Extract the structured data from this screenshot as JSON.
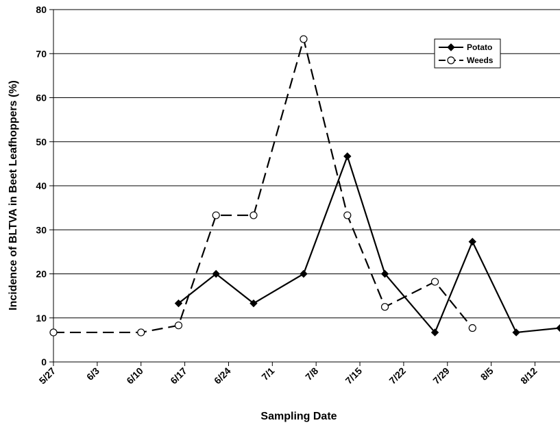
{
  "chart_data": {
    "type": "line",
    "title": "",
    "xlabel": "Sampling Date",
    "ylabel": "Incidence of BLTVA in Beet Leafhoppers (%)",
    "x_tick_labels": [
      "5/27",
      "6/3",
      "6/10",
      "6/17",
      "6/24",
      "7/1",
      "7/8",
      "7/15",
      "7/22",
      "7/29",
      "8/5",
      "8/12"
    ],
    "x_tick_days": [
      0,
      7,
      14,
      21,
      28,
      35,
      42,
      49,
      56,
      63,
      70,
      77
    ],
    "xlim_days": [
      0,
      81
    ],
    "y_tick_labels": [
      "0",
      "10",
      "20",
      "30",
      "40",
      "50",
      "60",
      "70",
      "80"
    ],
    "ylim": [
      0,
      80
    ],
    "grid": "horizontal",
    "legend_position": "top-right",
    "series": [
      {
        "name": "Potato",
        "line_style": "solid",
        "marker": "filled-diamond",
        "color": "#000000",
        "x_days": [
          20,
          26,
          32,
          40,
          47,
          53,
          61,
          67,
          74,
          81
        ],
        "y": [
          13.3,
          20,
          13.3,
          20,
          46.7,
          20,
          6.7,
          27.3,
          6.7,
          7.7
        ]
      },
      {
        "name": "Weeds",
        "line_style": "dashed",
        "marker": "open-circle",
        "color": "#000000",
        "x_days": [
          0,
          14,
          20,
          26,
          32,
          40,
          47,
          53,
          61,
          67
        ],
        "y": [
          6.7,
          6.7,
          8.3,
          33.3,
          33.3,
          73.3,
          33.3,
          12.5,
          18.2,
          7.7
        ]
      }
    ]
  }
}
